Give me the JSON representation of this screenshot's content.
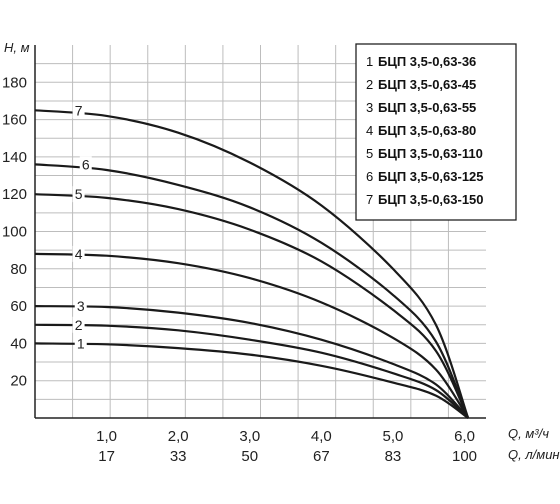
{
  "chart_data": {
    "type": "line",
    "title": "",
    "ylabel": "H, м",
    "xlabel": "Q, м³/ч",
    "xlabel2": "Q, л/мин",
    "ylim": [
      0,
      200
    ],
    "xlim": [
      0,
      6.3
    ],
    "y_ticks": [
      "20",
      "40",
      "60",
      "80",
      "100",
      "120",
      "140",
      "160",
      "180"
    ],
    "x_ticks": [
      "1,0",
      "2,0",
      "3,0",
      "4,0",
      "5,0",
      "6,0"
    ],
    "x_ticks2": [
      "17",
      "33",
      "50",
      "67",
      "83",
      "100"
    ],
    "grid": true,
    "legend_position": "top-right",
    "legend": [
      {
        "num": "1",
        "text": "БЦП 3,5-0,63-36"
      },
      {
        "num": "2",
        "text": "БЦП 3,5-0,63-45"
      },
      {
        "num": "3",
        "text": "БЦП 3,5-0,63-55"
      },
      {
        "num": "4",
        "text": "БЦП 3,5-0,63-80"
      },
      {
        "num": "5",
        "text": "БЦП 3,5-0,63-110"
      },
      {
        "num": "6",
        "text": "БЦП 3,5-0,63-125"
      },
      {
        "num": "7",
        "text": "БЦП 3,5-0,63-150"
      }
    ],
    "series": [
      {
        "name": "1",
        "x": [
          0,
          1.0,
          2.0,
          3.0,
          4.0,
          5.0,
          5.6,
          6.05
        ],
        "y": [
          40,
          39.5,
          37.5,
          34,
          28,
          19,
          12,
          0
        ]
      },
      {
        "name": "2",
        "x": [
          0,
          1.0,
          2.0,
          3.0,
          4.0,
          5.0,
          5.6,
          6.05
        ],
        "y": [
          50,
          49.5,
          47,
          42,
          35,
          24,
          15,
          0
        ]
      },
      {
        "name": "3",
        "x": [
          0,
          1.0,
          2.0,
          3.0,
          4.0,
          5.0,
          5.6,
          6.05
        ],
        "y": [
          60,
          59.5,
          56.5,
          51,
          42,
          29,
          18,
          0
        ]
      },
      {
        "name": "4",
        "x": [
          0,
          1.0,
          2.0,
          3.0,
          4.0,
          5.0,
          5.6,
          6.05
        ],
        "y": [
          88,
          87,
          83,
          75,
          62,
          43,
          26,
          0
        ]
      },
      {
        "name": "5",
        "x": [
          0,
          1.0,
          2.0,
          3.0,
          4.0,
          5.0,
          5.6,
          6.05
        ],
        "y": [
          120,
          118,
          112,
          101,
          84,
          58,
          36,
          0
        ]
      },
      {
        "name": "6",
        "x": [
          0,
          1.0,
          2.0,
          3.0,
          4.0,
          5.0,
          5.6,
          6.05
        ],
        "y": [
          136,
          133,
          125,
          113,
          94,
          66,
          41,
          0
        ]
      },
      {
        "name": "7",
        "x": [
          0,
          1.0,
          2.0,
          3.0,
          4.0,
          5.0,
          5.6,
          6.05
        ],
        "y": [
          165,
          162,
          153,
          137,
          114,
          80,
          50,
          0
        ]
      }
    ]
  }
}
